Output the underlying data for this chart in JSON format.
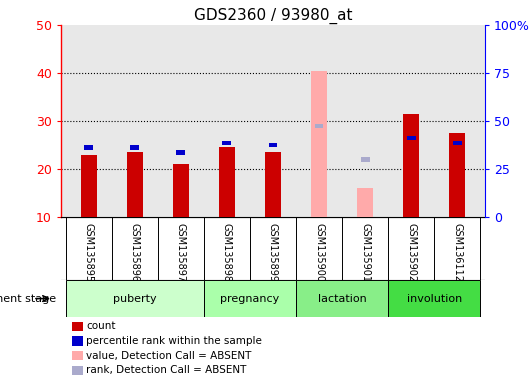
{
  "title": "GDS2360 / 93980_at",
  "samples": [
    "GSM135895",
    "GSM135896",
    "GSM135897",
    "GSM135898",
    "GSM135899",
    "GSM135900",
    "GSM135901",
    "GSM135902",
    "GSM136112"
  ],
  "count_values": [
    23.0,
    23.5,
    21.0,
    24.5,
    23.5,
    null,
    null,
    31.5,
    27.5
  ],
  "rank_values": [
    24.0,
    24.0,
    23.0,
    25.0,
    24.5,
    null,
    null,
    26.0,
    25.0
  ],
  "count_absent": [
    null,
    null,
    null,
    null,
    null,
    40.5,
    16.0,
    null,
    null
  ],
  "rank_absent": [
    null,
    null,
    null,
    null,
    null,
    28.5,
    21.5,
    null,
    null
  ],
  "groups": [
    {
      "label": "puberty",
      "indices": [
        0,
        1,
        2
      ],
      "color": "#ccffcc"
    },
    {
      "label": "pregnancy",
      "indices": [
        3,
        4
      ],
      "color": "#aaffaa"
    },
    {
      "label": "lactation",
      "indices": [
        5,
        6
      ],
      "color": "#88ee88"
    },
    {
      "label": "involution",
      "indices": [
        7,
        8
      ],
      "color": "#44dd44"
    }
  ],
  "left_yticks": [
    10,
    20,
    30,
    40,
    50
  ],
  "right_ytick_labels": [
    "0",
    "25",
    "50",
    "75",
    "100%"
  ],
  "ylim": [
    10,
    50
  ],
  "bar_width": 0.35,
  "count_color": "#cc0000",
  "rank_color": "#0000cc",
  "count_absent_color": "#ffaaaa",
  "rank_absent_color": "#aaaacc",
  "plot_bg_color": "#e8e8e8",
  "development_stage_label": "development stage",
  "legend_items": [
    {
      "color": "#cc0000",
      "label": "count"
    },
    {
      "color": "#0000cc",
      "label": "percentile rank within the sample"
    },
    {
      "color": "#ffaaaa",
      "label": "value, Detection Call = ABSENT"
    },
    {
      "color": "#aaaacc",
      "label": "rank, Detection Call = ABSENT"
    }
  ]
}
